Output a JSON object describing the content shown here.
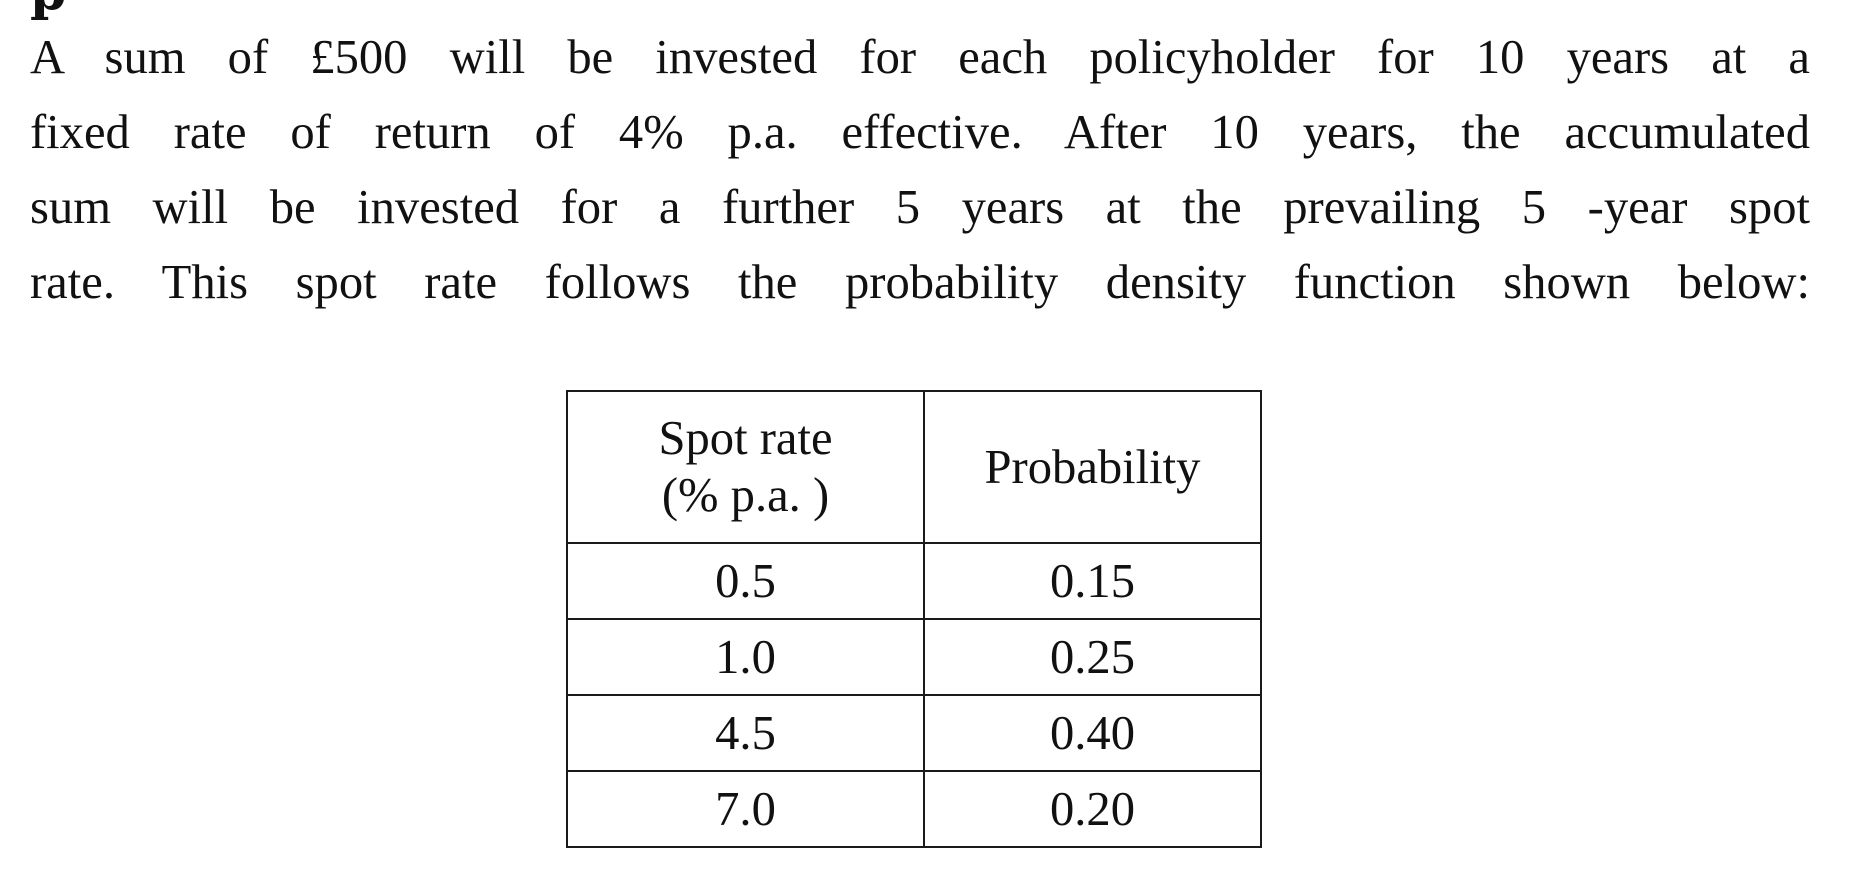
{
  "heading_fragment": "p",
  "paragraph": {
    "lines": [
      "A sum of £500 will be invested for each policyholder for 10 years at a",
      "fixed rate of return of 4% p.a. effective. After 10 years, the accumulated",
      "sum will be invested for a further 5 years at the prevailing 5 -year spot",
      "rate. This spot rate follows the probability density function shown below:"
    ]
  },
  "table": {
    "headers": {
      "rate_line1": "Spot rate",
      "rate_line2": "(% p.a. )",
      "probability": "Probability"
    },
    "rows": [
      {
        "rate": "0.5",
        "probability": "0.15"
      },
      {
        "rate": "1.0",
        "probability": "0.25"
      },
      {
        "rate": "4.5",
        "probability": "0.40"
      },
      {
        "rate": "7.0",
        "probability": "0.20"
      }
    ]
  }
}
